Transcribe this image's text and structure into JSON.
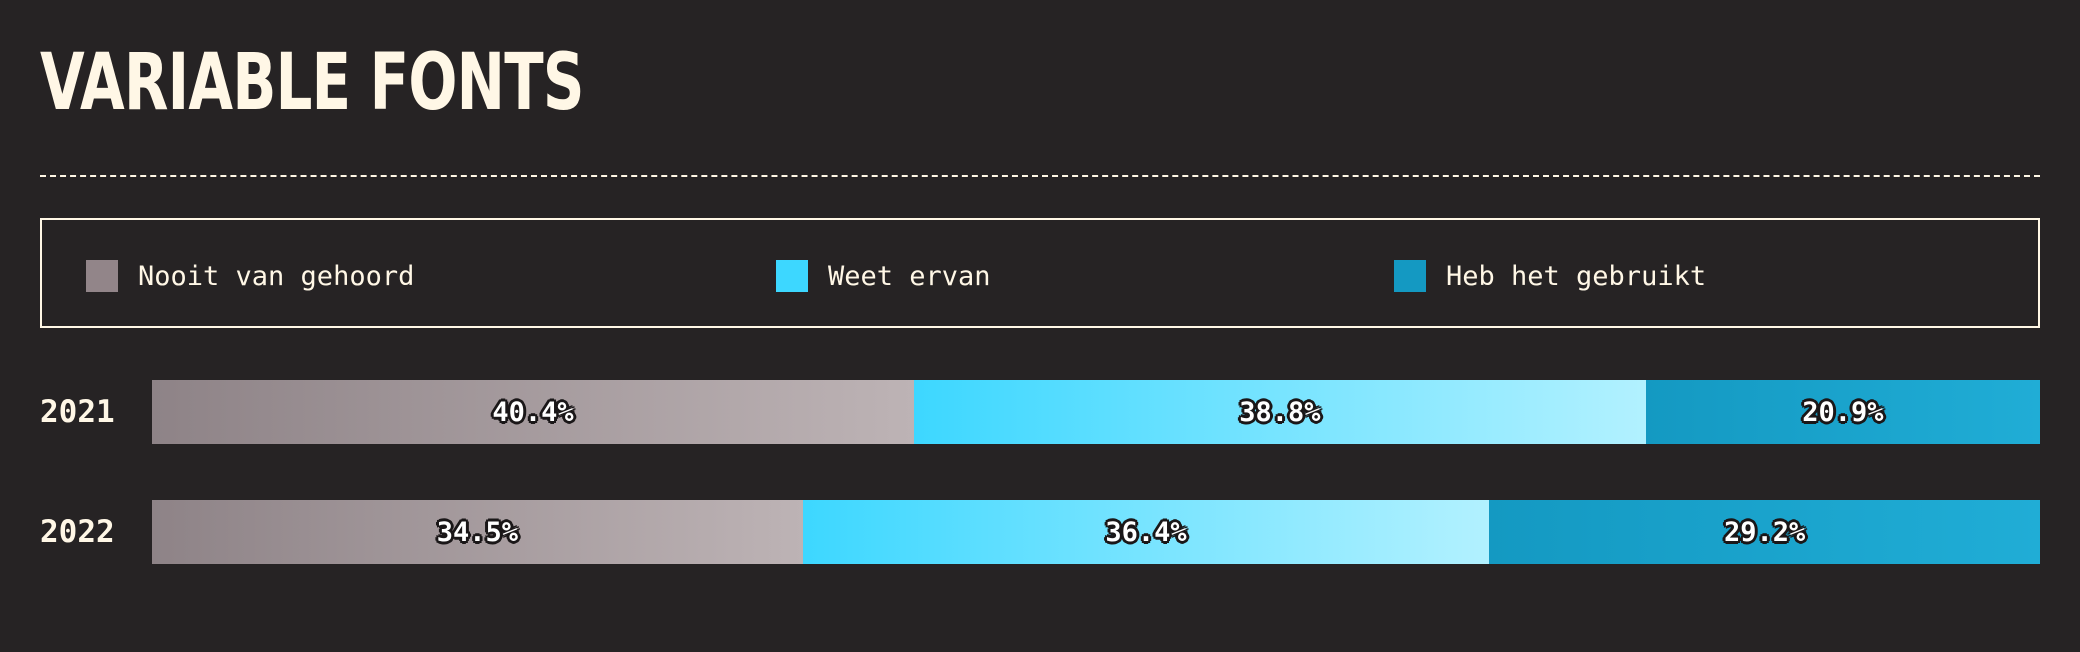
{
  "header": {
    "title": "VARIABLE FONTS"
  },
  "legend": [
    {
      "label": "Nooit van gehoord",
      "color": "#928589"
    },
    {
      "label": "Weet ervan",
      "color": "#3dd7ff"
    },
    {
      "label": "Heb het gebruikt",
      "color": "#1499c2"
    }
  ],
  "chart_data": {
    "type": "bar",
    "orientation": "horizontal",
    "stacked": true,
    "normalized_percent": true,
    "title": "VARIABLE FONTS",
    "categories": [
      "2021",
      "2022"
    ],
    "series": [
      {
        "name": "Nooit van gehoord",
        "values": [
          40.4,
          34.5
        ],
        "labels": [
          "40.4%",
          "34.5%"
        ]
      },
      {
        "name": "Weet ervan",
        "values": [
          38.8,
          36.4
        ],
        "labels": [
          "38.8%",
          "36.4%"
        ]
      },
      {
        "name": "Heb het gebruikt",
        "values": [
          20.9,
          29.2
        ],
        "labels": [
          "20.9%",
          "29.2%"
        ]
      }
    ],
    "legend_position": "top",
    "grid": false
  },
  "colors": {
    "background": "#262324",
    "text": "#fff7e6",
    "gradients": [
      [
        "#8e8387",
        "#bdb3b5"
      ],
      [
        "#3dd7ff",
        "#b2f1ff"
      ],
      [
        "#1499c2",
        "#20add6"
      ]
    ]
  }
}
